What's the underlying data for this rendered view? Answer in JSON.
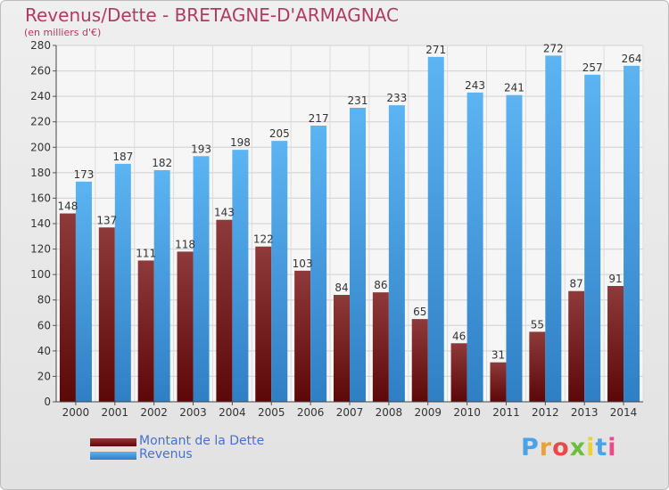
{
  "header": {
    "title": "Revenus/Dette - BRETAGNE-D'ARMAGNAC",
    "subtitle": "(en milliers d'€)"
  },
  "legend": {
    "items": [
      {
        "label": "Montant de la Dette",
        "color": "#7b1e1e"
      },
      {
        "label": "Revenus",
        "color": "#4aa3e8"
      }
    ]
  },
  "logo": {
    "text": "Proxiti"
  },
  "colors": {
    "debt": "#7b1e1e",
    "revenue": "#4aa3e8",
    "title": "#b03a64",
    "legend_text": "#4a6fd4"
  },
  "chart_data": {
    "type": "bar",
    "title": "Revenus/Dette - BRETAGNE-D'ARMAGNAC",
    "subtitle": "(en milliers d'€)",
    "xlabel": "",
    "ylabel": "",
    "categories": [
      "2000",
      "2001",
      "2002",
      "2003",
      "2004",
      "2005",
      "2006",
      "2007",
      "2008",
      "2009",
      "2010",
      "2011",
      "2012",
      "2013",
      "2014"
    ],
    "series": [
      {
        "name": "Montant de la Dette",
        "values": [
          148,
          137,
          111,
          118,
          143,
          122,
          103,
          84,
          86,
          65,
          46,
          31,
          55,
          87,
          91
        ]
      },
      {
        "name": "Revenus",
        "values": [
          173,
          187,
          182,
          193,
          198,
          205,
          217,
          231,
          233,
          271,
          243,
          241,
          272,
          257,
          264
        ]
      }
    ],
    "ylim": [
      0,
      280
    ],
    "yticks": [
      0,
      20,
      40,
      60,
      80,
      100,
      120,
      140,
      160,
      180,
      200,
      220,
      240,
      260,
      280
    ],
    "grid": true,
    "legend_position": "bottom-left"
  }
}
